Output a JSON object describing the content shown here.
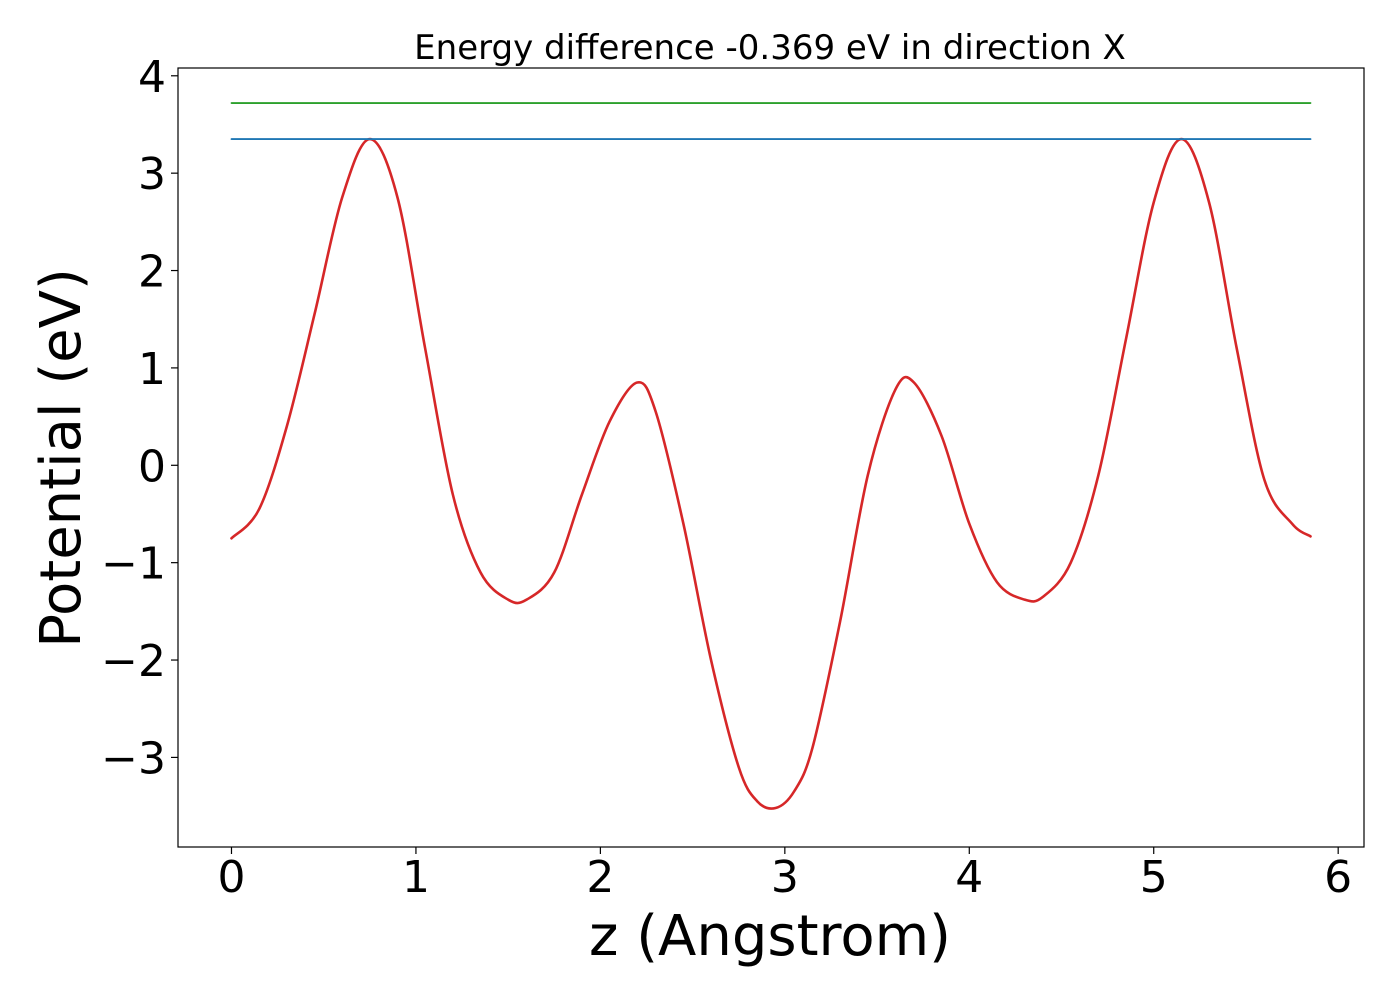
{
  "chart_data": {
    "type": "line",
    "title": "Energy difference -0.369 eV in direction X",
    "xlabel": "z (Angstrom)",
    "ylabel": "Potential (eV)",
    "xlim": [
      -0.29,
      6.14
    ],
    "ylim": [
      -3.92,
      4.08
    ],
    "xticks": [
      0,
      1,
      2,
      3,
      4,
      5,
      6
    ],
    "yticks": [
      -3,
      -2,
      -1,
      0,
      1,
      2,
      3,
      4
    ],
    "xtick_labels": [
      "0",
      "1",
      "2",
      "3",
      "4",
      "5",
      "6"
    ],
    "ytick_labels": [
      "−3",
      "−2",
      "−1",
      "0",
      "1",
      "2",
      "3",
      "4"
    ],
    "grid": false,
    "legend": "none",
    "series": [
      {
        "color": "#d62728",
        "x": [
          0.0,
          0.15,
          0.3,
          0.45,
          0.6,
          0.75,
          0.9,
          1.05,
          1.2,
          1.35,
          1.5,
          1.6,
          1.75,
          1.9,
          2.05,
          2.2,
          2.3,
          2.45,
          2.6,
          2.75,
          2.85,
          2.95,
          3.05,
          3.15,
          3.3,
          3.45,
          3.6,
          3.7,
          3.85,
          4.0,
          4.15,
          4.3,
          4.4,
          4.55,
          4.7,
          4.85,
          5.0,
          5.15,
          5.3,
          5.45,
          5.6,
          5.75,
          5.85
        ],
        "y": [
          -0.75,
          -0.45,
          0.4,
          1.55,
          2.75,
          3.35,
          2.75,
          1.2,
          -0.3,
          -1.1,
          -1.38,
          -1.38,
          -1.1,
          -0.3,
          0.45,
          0.85,
          0.55,
          -0.6,
          -2.0,
          -3.1,
          -3.45,
          -3.52,
          -3.35,
          -2.9,
          -1.6,
          -0.1,
          0.78,
          0.85,
          0.3,
          -0.6,
          -1.2,
          -1.38,
          -1.35,
          -1.0,
          -0.1,
          1.3,
          2.7,
          3.35,
          2.7,
          1.2,
          -0.15,
          -0.6,
          -0.73
        ]
      },
      {
        "color": "#1f77b4",
        "x": [
          0.0,
          5.85
        ],
        "y": [
          3.35,
          3.35
        ]
      },
      {
        "color": "#2ca02c",
        "x": [
          0.0,
          5.85
        ],
        "y": [
          3.72,
          3.72
        ]
      }
    ]
  }
}
